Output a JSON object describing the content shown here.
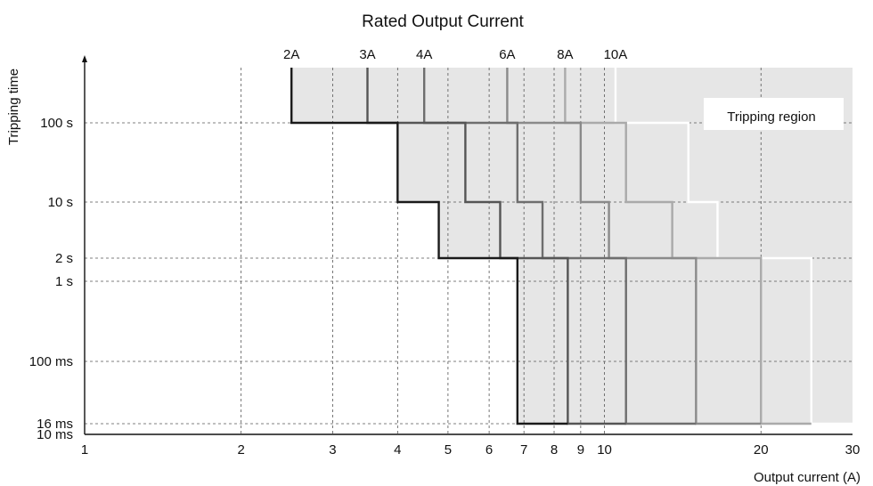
{
  "chart_data": {
    "type": "line",
    "title": "Rated Output Current",
    "xlabel": "Output current (A)",
    "ylabel": "Tripping time",
    "x_scale": "log",
    "y_scale": "log",
    "xlim": [
      1,
      30
    ],
    "ylim_seconds": [
      0.01,
      600
    ],
    "x_ticks": [
      {
        "value": 1,
        "label": "1"
      },
      {
        "value": 2,
        "label": "2"
      },
      {
        "value": 3,
        "label": "3"
      },
      {
        "value": 4,
        "label": "4"
      },
      {
        "value": 5,
        "label": "5"
      },
      {
        "value": 6,
        "label": "6"
      },
      {
        "value": 7,
        "label": "7"
      },
      {
        "value": 8,
        "label": "8"
      },
      {
        "value": 9,
        "label": "9"
      },
      {
        "value": 10,
        "label": "10"
      },
      {
        "value": 20,
        "label": "20"
      },
      {
        "value": 30,
        "label": "30"
      }
    ],
    "y_ticks": [
      {
        "value": 100,
        "label": "100 s"
      },
      {
        "value": 10,
        "label": "10 s"
      },
      {
        "value": 2,
        "label": "2 s"
      },
      {
        "value": 1,
        "label": "1 s"
      },
      {
        "value": 0.1,
        "label": "100 ms"
      },
      {
        "value": 0.016,
        "label": "16 ms"
      },
      {
        "value": 0.01,
        "label": "10 ms"
      }
    ],
    "grid": true,
    "region_label": "Tripping region",
    "series": [
      {
        "name": "2A",
        "color": "#1a1a1a",
        "points": [
          [
            2.5,
            600
          ],
          [
            2.5,
            100
          ],
          [
            4.0,
            100
          ],
          [
            4.0,
            10
          ],
          [
            4.8,
            10
          ],
          [
            4.8,
            2
          ],
          [
            6.8,
            2
          ],
          [
            6.8,
            0.016
          ],
          [
            8.5,
            0.016
          ]
        ]
      },
      {
        "name": "3A",
        "color": "#555555",
        "points": [
          [
            3.5,
            600
          ],
          [
            3.5,
            100
          ],
          [
            5.4,
            100
          ],
          [
            5.4,
            10
          ],
          [
            6.3,
            10
          ],
          [
            6.3,
            2
          ],
          [
            8.5,
            2
          ],
          [
            8.5,
            0.016
          ],
          [
            11.0,
            0.016
          ]
        ]
      },
      {
        "name": "4A",
        "color": "#6e6e6e",
        "points": [
          [
            4.5,
            600
          ],
          [
            4.5,
            100
          ],
          [
            6.8,
            100
          ],
          [
            6.8,
            10
          ],
          [
            7.6,
            10
          ],
          [
            7.6,
            2
          ],
          [
            11.0,
            2
          ],
          [
            11.0,
            0.016
          ],
          [
            15.0,
            0.016
          ]
        ]
      },
      {
        "name": "6A",
        "color": "#8a8a8a",
        "points": [
          [
            6.5,
            600
          ],
          [
            6.5,
            100
          ],
          [
            9.0,
            100
          ],
          [
            9.0,
            10
          ],
          [
            10.2,
            10
          ],
          [
            10.2,
            2
          ],
          [
            15.0,
            2
          ],
          [
            15.0,
            0.016
          ],
          [
            20.0,
            0.016
          ]
        ]
      },
      {
        "name": "8A",
        "color": "#aaaaaa",
        "points": [
          [
            8.4,
            600
          ],
          [
            8.4,
            100
          ],
          [
            11.0,
            100
          ],
          [
            11.0,
            10
          ],
          [
            13.5,
            10
          ],
          [
            13.5,
            2
          ],
          [
            20.0,
            2
          ],
          [
            20.0,
            0.016
          ],
          [
            25.0,
            0.016
          ]
        ]
      },
      {
        "name": "10A",
        "color": "#ffffff",
        "points": [
          [
            10.5,
            600
          ],
          [
            10.5,
            100
          ],
          [
            14.5,
            100
          ],
          [
            14.5,
            10
          ],
          [
            16.5,
            10
          ],
          [
            16.5,
            2
          ],
          [
            25.0,
            2
          ],
          [
            25.0,
            0.016
          ],
          [
            30.0,
            0.016
          ]
        ]
      }
    ]
  },
  "colors": {
    "region_fill": "#e6e6e6",
    "grid": "#555555",
    "axis": "#111111"
  }
}
